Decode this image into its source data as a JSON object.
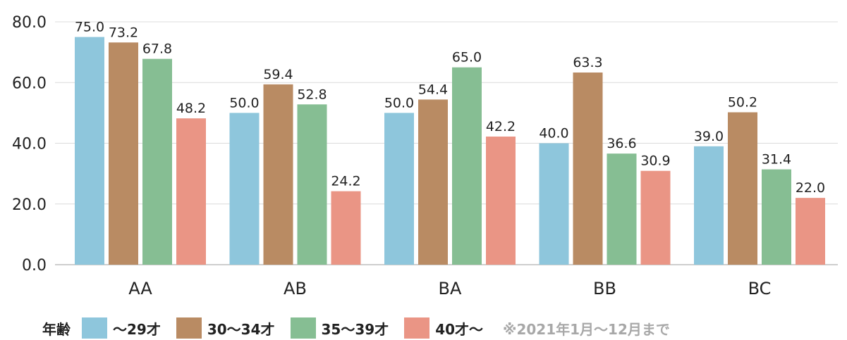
{
  "chart_data": {
    "type": "bar",
    "categories": [
      "AA",
      "AB",
      "BA",
      "BB",
      "BC"
    ],
    "series": [
      {
        "name": "〜29才",
        "color": "#8ec6dc",
        "values": [
          75.0,
          50.0,
          50.0,
          40.0,
          39.0
        ]
      },
      {
        "name": "30〜34才",
        "color": "#b98b63",
        "values": [
          73.2,
          59.4,
          54.4,
          63.3,
          50.2
        ]
      },
      {
        "name": "35〜39才",
        "color": "#86be93",
        "values": [
          67.8,
          52.8,
          65.0,
          36.6,
          31.4
        ]
      },
      {
        "name": "40才〜",
        "color": "#ea9585",
        "values": [
          48.2,
          24.2,
          42.2,
          30.9,
          22.0
        ]
      }
    ],
    "ylim": [
      0,
      80
    ],
    "yticks": [
      "0.0",
      "20.0",
      "40.0",
      "60.0",
      "80.0"
    ],
    "grid": true,
    "legend_title": "年齢",
    "note": "※2021年1月〜12月まで"
  }
}
